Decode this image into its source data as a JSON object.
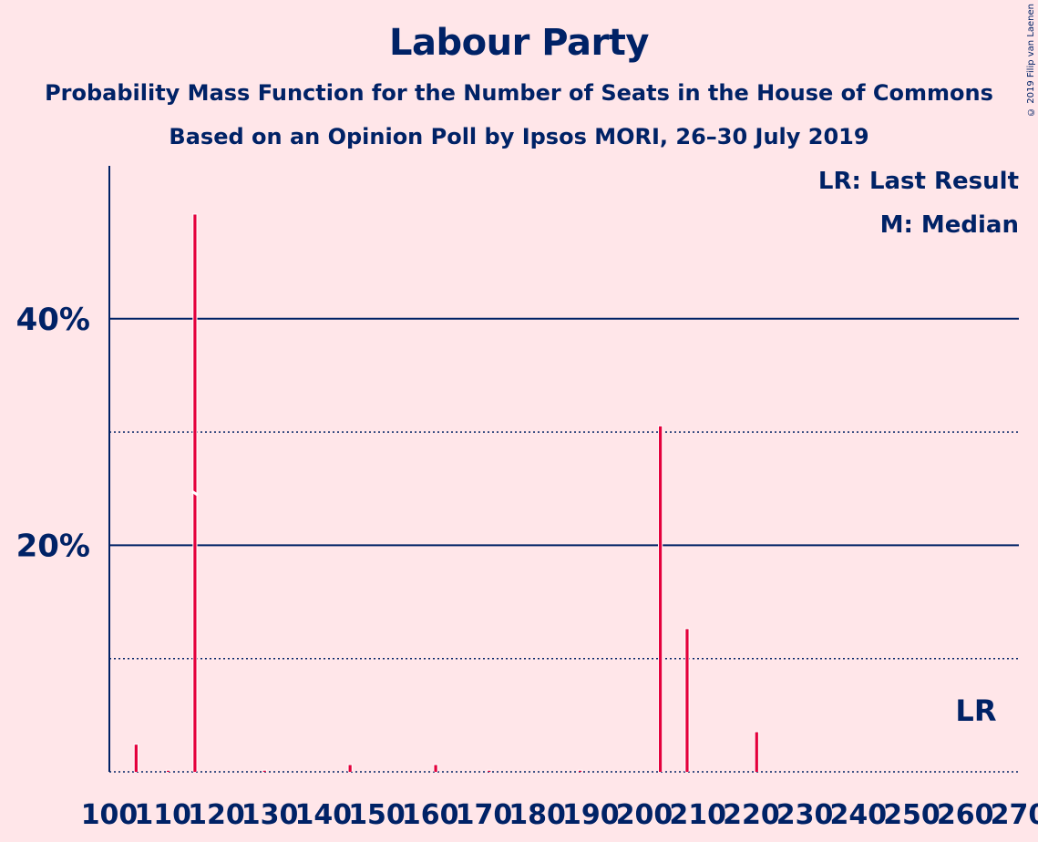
{
  "title": "Labour Party",
  "subtitle": "Probability Mass Function for the Number of Seats in the House of Commons",
  "subtitle2": "Based on an Opinion Poll by Ipsos MORI, 26–30 July 2019",
  "copyright": "© 2019 Filip van Laenen",
  "legend": {
    "last_result": "LR: Last Result",
    "median": "M: Median"
  },
  "colors": {
    "background": "#FFE6E9",
    "text": "#002266",
    "bar": "#E4003B",
    "bar_outline": "#FFFFFF"
  },
  "chart_data": {
    "type": "bar",
    "xlim": [
      100,
      270
    ],
    "ylim": [
      0,
      53.5
    ],
    "yticks_major": [
      20,
      40
    ],
    "yticks_minor": [
      10,
      30
    ],
    "ytick_labels": [
      "20%",
      "40%"
    ],
    "xtick_labels": [
      "100",
      "110",
      "120",
      "130",
      "140",
      "150",
      "160",
      "170",
      "180",
      "190",
      "200",
      "210",
      "220",
      "230",
      "240",
      "250",
      "260",
      "270"
    ],
    "grid": true,
    "x": [
      105,
      111,
      116,
      129,
      145,
      161,
      171,
      188,
      203,
      208,
      221
    ],
    "values": [
      2.4,
      0.1,
      49.2,
      0.1,
      0.6,
      0.6,
      0.1,
      0.1,
      30.5,
      12.6,
      3.5
    ],
    "median": 116,
    "last_result": 262,
    "last_result_label": "LR"
  }
}
